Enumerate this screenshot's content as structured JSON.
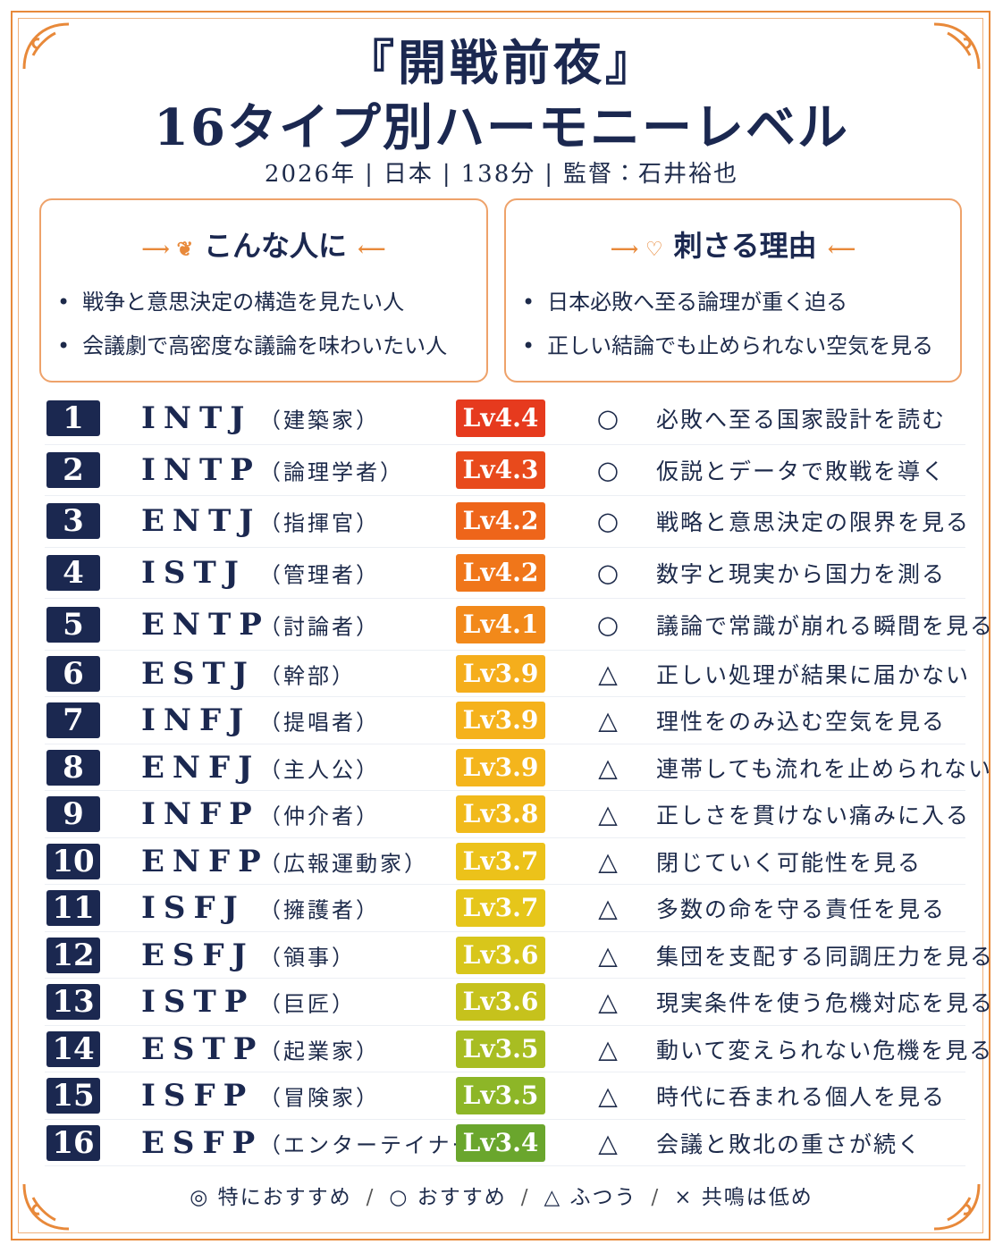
{
  "header": {
    "title_lines": [
      "『開戦前夜』",
      "16タイプ別ハーモニーレベル"
    ],
    "meta": [
      "2026年",
      "日本",
      "138分",
      "監督：石井裕也"
    ]
  },
  "boxes": [
    {
      "title": "こんな人に",
      "items": [
        "戦争と意思決定の構造を見たい人",
        "会議劇で高密度な議論を味わいたい人"
      ]
    },
    {
      "title": "刺さる理由",
      "items": [
        "日本必敗へ至る論理が重く迫る",
        "正しい結論でも止められない空気を見る"
      ]
    }
  ],
  "rows": [
    {
      "rank": 1,
      "type": "INTJ",
      "role": "（建築家）",
      "level": "Lv4.4",
      "color": "#e63a1e",
      "mark": "○",
      "comment": "必敗へ至る国家設計を読む"
    },
    {
      "rank": 2,
      "type": "INTP",
      "role": "（論理学者）",
      "level": "Lv4.3",
      "color": "#e84a1c",
      "mark": "○",
      "comment": "仮説とデータで敗戦を導く"
    },
    {
      "rank": 3,
      "type": "ENTJ",
      "role": "（指揮官）",
      "level": "Lv4.2",
      "color": "#ee651a",
      "mark": "○",
      "comment": "戦略と意思決定の限界を見る"
    },
    {
      "rank": 4,
      "type": "ISTJ",
      "role": "（管理者）",
      "level": "Lv4.2",
      "color": "#f0761a",
      "mark": "○",
      "comment": "数字と現実から国力を測る"
    },
    {
      "rank": 5,
      "type": "ENTP",
      "role": "（討論者）",
      "level": "Lv4.1",
      "color": "#f2891a",
      "mark": "○",
      "comment": "議論で常識が崩れる瞬間を見る"
    },
    {
      "rank": 6,
      "type": "ESTJ",
      "role": "（幹部）",
      "level": "Lv3.9",
      "color": "#f5ae1c",
      "mark": "△",
      "comment": "正しい処理が結果に届かない"
    },
    {
      "rank": 7,
      "type": "INFJ",
      "role": "（提唱者）",
      "level": "Lv3.9",
      "color": "#f5b21c",
      "mark": "△",
      "comment": "理性をのみ込む空気を見る"
    },
    {
      "rank": 8,
      "type": "ENFJ",
      "role": "（主人公）",
      "level": "Lv3.9",
      "color": "#f4b51c",
      "mark": "△",
      "comment": "連帯しても流れを止められない"
    },
    {
      "rank": 9,
      "type": "INFP",
      "role": "（仲介者）",
      "level": "Lv3.8",
      "color": "#f1ba1b",
      "mark": "△",
      "comment": "正しさを貫けない痛みに入る"
    },
    {
      "rank": 10,
      "type": "ENFP",
      "role": "（広報運動家）",
      "level": "Lv3.7",
      "color": "#ecc21a",
      "mark": "△",
      "comment": "閉じていく可能性を見る"
    },
    {
      "rank": 11,
      "type": "ISFJ",
      "role": "（擁護者）",
      "level": "Lv3.7",
      "color": "#e6c61a",
      "mark": "△",
      "comment": "多数の命を守る責任を見る"
    },
    {
      "rank": 12,
      "type": "ESFJ",
      "role": "（領事）",
      "level": "Lv3.6",
      "color": "#d8c61b",
      "mark": "△",
      "comment": "集団を支配する同調圧力を見る"
    },
    {
      "rank": 13,
      "type": "ISTP",
      "role": "（巨匠）",
      "level": "Lv3.6",
      "color": "#c6c21c",
      "mark": "△",
      "comment": "現実条件を使う危機対応を見る"
    },
    {
      "rank": 14,
      "type": "ESTP",
      "role": "（起業家）",
      "level": "Lv3.5",
      "color": "#a8bd22",
      "mark": "△",
      "comment": "動いて変えられない危機を見る"
    },
    {
      "rank": 15,
      "type": "ISFP",
      "role": "（冒険家）",
      "level": "Lv3.5",
      "color": "#8db627",
      "mark": "△",
      "comment": "時代に呑まれる個人を見る"
    },
    {
      "rank": 16,
      "type": "ESFP",
      "role": "（エンターテイナー）",
      "level": "Lv3.4",
      "color": "#6aa62d",
      "mark": "△",
      "comment": "会議と敗北の重さが続く"
    }
  ],
  "legend": [
    "◎ 特におすすめ",
    "○ おすすめ",
    "△ ふつう",
    "× 共鳴は低め"
  ]
}
